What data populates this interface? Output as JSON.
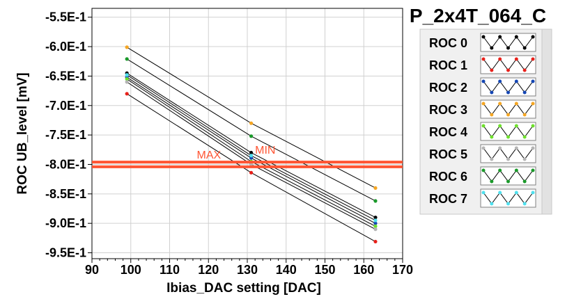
{
  "module_title": "P_2x4T_064_C",
  "chart_data": {
    "type": "line",
    "xlabel": "Ibias_DAC setting [DAC]",
    "ylabel": "ROC UB_level [mV]",
    "xlim": [
      90,
      170
    ],
    "ylim": [
      -0.96,
      -0.535
    ],
    "x_ticks": [
      90,
      100,
      110,
      120,
      130,
      140,
      150,
      160,
      170
    ],
    "x_tick_labels": [
      "90",
      "100",
      "110",
      "120",
      "130",
      "140",
      "150",
      "160",
      "170"
    ],
    "y_ticks": [
      -0.55,
      -0.6,
      -0.65,
      -0.7,
      -0.75,
      -0.8,
      -0.85,
      -0.9,
      -0.95
    ],
    "y_tick_labels": [
      "-5.5E-1",
      "-6.0E-1",
      "-6.5E-1",
      "-7.0E-1",
      "-7.5E-1",
      "-8.0E-1",
      "-8.5E-1",
      "-9.0E-1",
      "-9.5E-1"
    ],
    "grid": true,
    "legend_position": "right",
    "reference_lines": [
      {
        "label": "MAX",
        "y": -0.796,
        "color": "#ff5533"
      },
      {
        "label": "MIN",
        "y": -0.804,
        "color": "#ff5533"
      }
    ],
    "series": [
      {
        "name": "ROC 0",
        "color": "#000000",
        "x": [
          99,
          131,
          163
        ],
        "y": [
          -0.645,
          -0.78,
          -0.89
        ]
      },
      {
        "name": "ROC 1",
        "color": "#e8201a",
        "x": [
          99,
          131,
          163
        ],
        "y": [
          -0.68,
          -0.814,
          -0.931
        ]
      },
      {
        "name": "ROC 2",
        "color": "#1446b4",
        "x": [
          99,
          131,
          163
        ],
        "y": [
          -0.652,
          -0.789,
          -0.9
        ]
      },
      {
        "name": "ROC 3",
        "color": "#f5a623",
        "x": [
          99,
          131,
          163
        ],
        "y": [
          -0.601,
          -0.73,
          -0.84
        ]
      },
      {
        "name": "ROC 4",
        "color": "#6ee02c",
        "x": [
          99,
          131,
          163
        ],
        "y": [
          -0.655,
          -0.795,
          -0.905
        ]
      },
      {
        "name": "ROC 5",
        "color": "#b4b4b4",
        "x": [
          99,
          131,
          163
        ],
        "y": [
          -0.66,
          -0.8,
          -0.91
        ]
      },
      {
        "name": "ROC 6",
        "color": "#1a9a2a",
        "x": [
          99,
          131,
          163
        ],
        "y": [
          -0.621,
          -0.752,
          -0.862
        ]
      },
      {
        "name": "ROC 7",
        "color": "#4fe0ee",
        "x": [
          99,
          131,
          163
        ],
        "y": [
          -0.648,
          -0.785,
          -0.895
        ]
      }
    ]
  }
}
